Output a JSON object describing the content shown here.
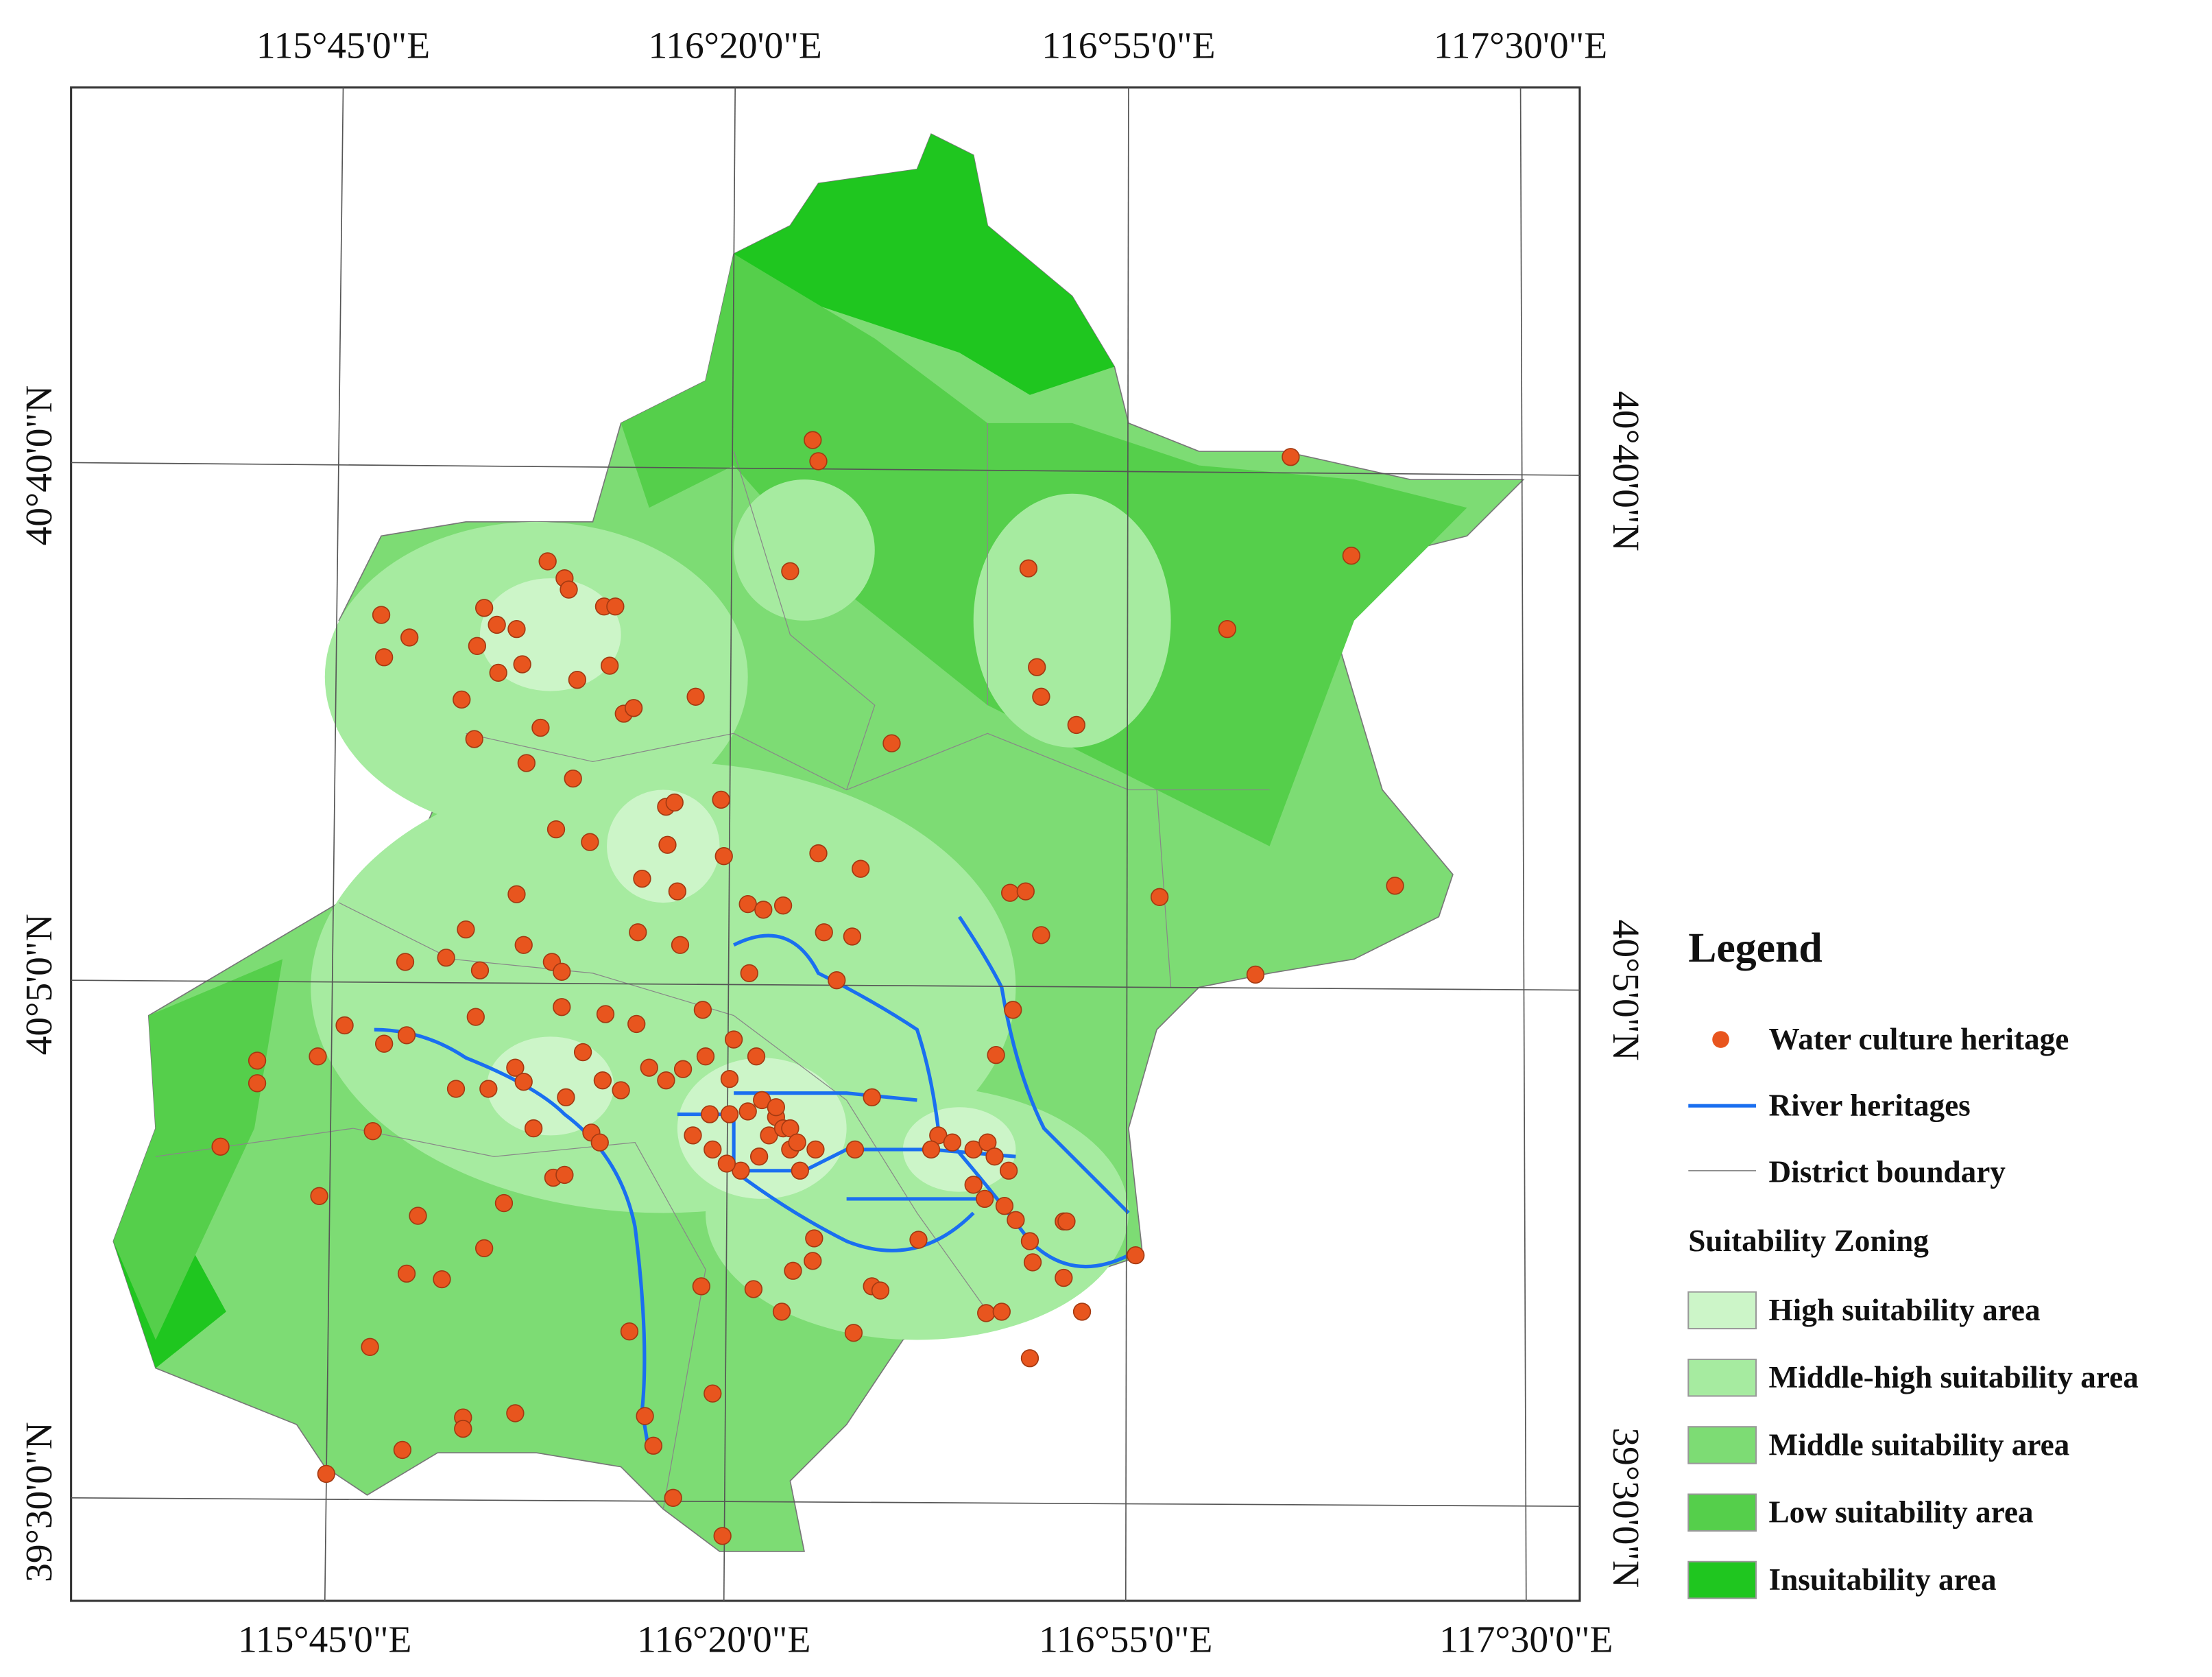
{
  "map": {
    "top_labels": [
      "115°45'0\"E",
      "116°20'0\"E",
      "116°55'0\"E",
      "117°30'0\"E"
    ],
    "bottom_labels": [
      "115°45'0\"E",
      "116°20'0\"E",
      "116°55'0\"E",
      "117°30'0\"E"
    ],
    "left_labels": [
      "40°40'0\"N",
      "40°5'0\"N",
      "39°30'0\"N"
    ],
    "right_labels": [
      "40°40'0\"N",
      "40°5'0\"N",
      "39°30'0\"N"
    ],
    "legend": {
      "title": "Legend",
      "items": [
        "Water culture heritage",
        "River heritages",
        "District boundary"
      ],
      "zoning_title": "Suitability Zoning",
      "zones": [
        "High suitability area",
        "Middle-high suitability area",
        "Middle suitability area",
        "Low suitability area",
        "Insuitability area"
      ]
    }
  }
}
